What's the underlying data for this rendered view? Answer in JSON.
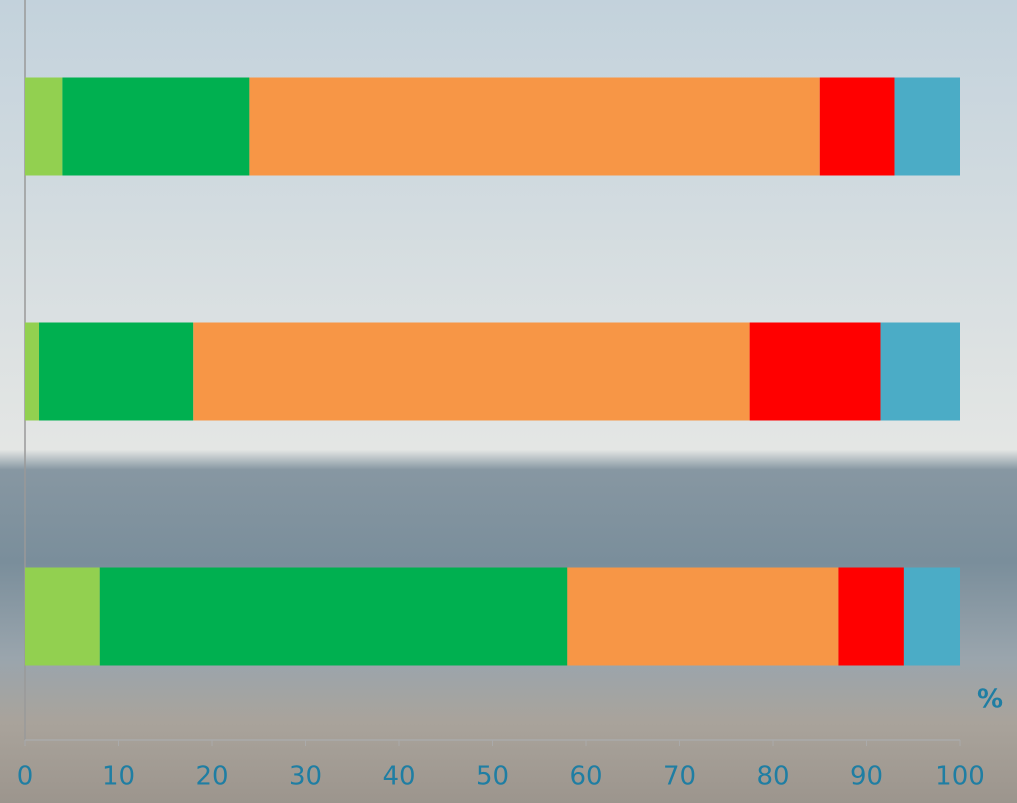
{
  "chart_data": {
    "type": "stacked_bar_horizontal",
    "categories": [
      null,
      null,
      null
    ],
    "series": [
      {
        "color": "#92d050",
        "values": [
          4,
          1.5,
          8
        ]
      },
      {
        "color": "#00b050",
        "values": [
          20,
          16.5,
          50
        ]
      },
      {
        "color": "#f79646",
        "values": [
          61,
          59.5,
          29
        ]
      },
      {
        "color": "#ff0000",
        "values": [
          8,
          14,
          7
        ]
      },
      {
        "color": "#4bacc6",
        "values": [
          7,
          8.5,
          6
        ]
      }
    ],
    "x_label": "%",
    "xlim": [
      0,
      100
    ],
    "xticks": [
      0,
      10,
      20,
      30,
      40,
      50,
      60,
      70,
      80,
      90,
      100
    ]
  }
}
